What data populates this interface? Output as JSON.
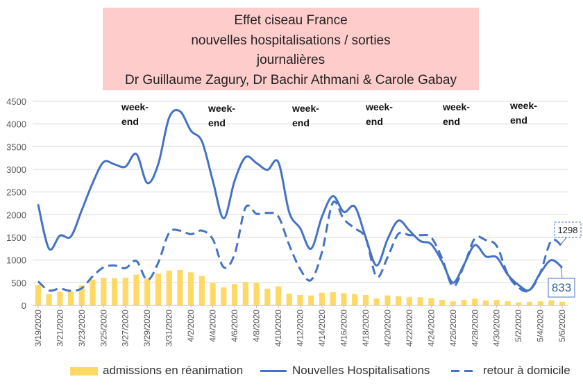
{
  "chart_data": {
    "type": "bar+line",
    "title": [
      "Effet ciseau France",
      "nouvelles hospitalisations / sorties",
      "journalières",
      "Dr Guillaume Zagury, Dr Bachir Athmani & Carole Gabay"
    ],
    "xlabel": "",
    "ylabel": "",
    "ylim": [
      0,
      4500
    ],
    "yticks": [
      "0",
      "500",
      "1000",
      "1500",
      "2000",
      "2500",
      "3000",
      "3500",
      "4000",
      "4500"
    ],
    "x": [
      "3/19/2020",
      "3/20/2020",
      "3/21/2020",
      "3/22/2020",
      "3/23/2020",
      "3/24/2020",
      "3/25/2020",
      "3/26/2020",
      "3/27/2020",
      "3/28/2020",
      "3/29/2020",
      "3/30/2020",
      "3/31/2020",
      "4/1/2020",
      "4/2/2020",
      "4/3/2020",
      "4/4/2020",
      "4/5/2020",
      "4/6/2020",
      "4/7/2020",
      "4/8/2020",
      "4/9/2020",
      "4/10/2020",
      "4/11/2020",
      "4/12/2020",
      "4/13/2020",
      "4/14/2020",
      "4/15/2020",
      "4/16/2020",
      "4/17/2020",
      "4/18/2020",
      "4/19/2020",
      "4/20/2020",
      "4/21/2020",
      "4/22/2020",
      "4/23/2020",
      "4/24/2020",
      "4/25/2020",
      "4/26/2020",
      "4/27/2020",
      "4/28/2020",
      "4/29/2020",
      "4/30/2020",
      "5/1/2020",
      "5/2/2020",
      "5/3/2020",
      "5/4/2020",
      "5/5/2020",
      "5/6/2020"
    ],
    "tick_labels": [
      "3/19/2020",
      "3/21/2020",
      "3/23/2020",
      "3/25/2020",
      "3/27/2020",
      "3/29/2020",
      "3/31/2020",
      "4/2/2020",
      "4/4/2020",
      "4/6/2020",
      "4/8/2020",
      "4/10/2020",
      "4/12/2020",
      "4/14/2020",
      "4/16/2020",
      "4/18/2020",
      "4/20/2020",
      "4/22/2020",
      "4/24/2020",
      "4/26/2020",
      "4/28/2020",
      "4/30/2020",
      "5/2/2020",
      "5/4/2020",
      "5/6/2020"
    ],
    "series": [
      {
        "name": "admissions en réanimation",
        "kind": "bar",
        "color": "#ffd966",
        "values": [
          450,
          250,
          300,
          310,
          440,
          570,
          610,
          600,
          610,
          680,
          590,
          700,
          770,
          780,
          730,
          650,
          500,
          400,
          470,
          520,
          490,
          370,
          420,
          260,
          230,
          220,
          280,
          290,
          270,
          250,
          230,
          150,
          220,
          200,
          180,
          180,
          160,
          120,
          90,
          120,
          150,
          110,
          120,
          90,
          70,
          80,
          90,
          110,
          80
        ]
      },
      {
        "name": "Nouvelles Hospitalisations",
        "kind": "line",
        "color": "#4472c4",
        "values": [
          2230,
          1250,
          1540,
          1520,
          2100,
          2700,
          3160,
          3110,
          3060,
          3340,
          2700,
          3110,
          4140,
          4280,
          3850,
          3620,
          2750,
          1920,
          2750,
          3270,
          3140,
          2990,
          3160,
          2050,
          1700,
          1250,
          1960,
          2410,
          2060,
          2180,
          1500,
          880,
          1460,
          1870,
          1650,
          1420,
          1350,
          960,
          500,
          900,
          1330,
          1080,
          1060,
          680,
          450,
          340,
          720,
          1000,
          833
        ]
      },
      {
        "name": "retour à domicile",
        "kind": "dashed-line",
        "color": "#4472c4",
        "values": [
          530,
          330,
          370,
          320,
          380,
          640,
          840,
          880,
          820,
          980,
          560,
          940,
          1600,
          1650,
          1570,
          1650,
          1460,
          840,
          1130,
          2160,
          2020,
          2040,
          1960,
          1330,
          800,
          560,
          1180,
          2270,
          1900,
          1700,
          1480,
          630,
          1060,
          1580,
          1550,
          1550,
          1500,
          1030,
          420,
          880,
          1480,
          1440,
          1310,
          690,
          390,
          330,
          730,
          1430,
          1298
        ]
      }
    ],
    "weekend_labels": [
      "week-end",
      "week-end",
      "week-end",
      "week-end",
      "week-end",
      "week-end"
    ],
    "callouts": {
      "retour": "1298",
      "hospitalisations": "833"
    },
    "legend": {
      "placement": "bottom",
      "items": [
        "admissions en réanimation",
        "Nouvelles Hospitalisations",
        "retour à domicile"
      ]
    }
  },
  "colors": {
    "title_bg": "#ffcccc",
    "bars": "#ffd966",
    "lines": "#4472c4",
    "grid": "#d9d9d9"
  }
}
